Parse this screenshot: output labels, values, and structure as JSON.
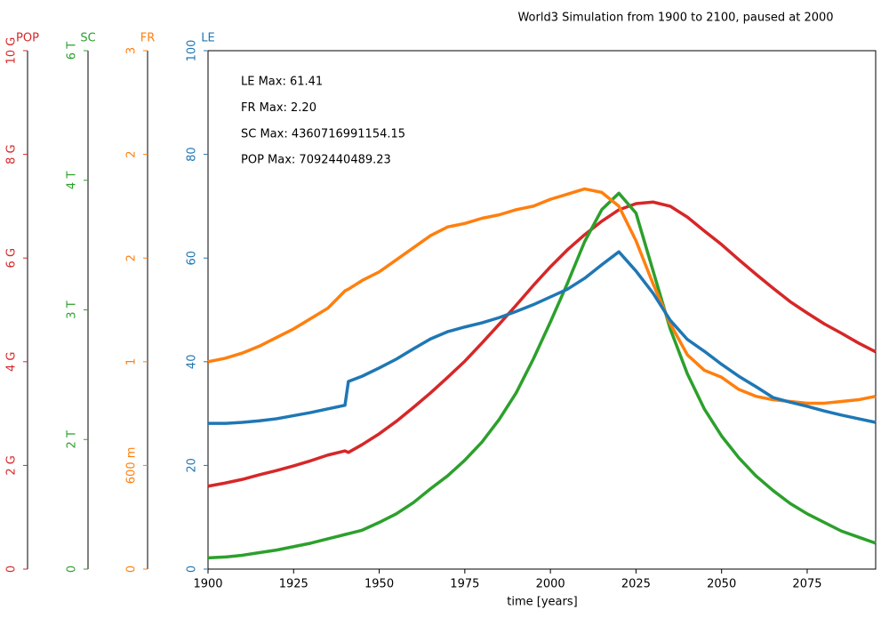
{
  "chart_data": {
    "type": "line",
    "title": "World3 Simulation from 1900 to 2100, paused at 2000",
    "x_label": "time [years]",
    "xlim": [
      1900,
      2095
    ],
    "xticks": [
      1900,
      1925,
      1950,
      1975,
      2000,
      2025,
      2050,
      2075
    ],
    "annotations": [
      "LE Max: 61.41",
      "FR Max: 2.20",
      "SC Max: 4360716991154.15",
      "POP Max: 7092440489.23"
    ],
    "x": [
      1900,
      1905,
      1910,
      1915,
      1920,
      1925,
      1930,
      1935,
      1940,
      1941,
      1945,
      1950,
      1955,
      1960,
      1965,
      1970,
      1975,
      1980,
      1985,
      1990,
      1995,
      2000,
      2005,
      2010,
      2015,
      2020,
      2025,
      2030,
      2035,
      2040,
      2045,
      2050,
      2055,
      2060,
      2065,
      2070,
      2075,
      2080,
      2085,
      2090,
      2095
    ],
    "series": [
      {
        "name": "POP",
        "color": "#d62728",
        "ylim": [
          0,
          10000000000
        ],
        "yticks": [
          0,
          {
            "value": 2000000000,
            "label": "2 G"
          },
          {
            "value": 4000000000,
            "label": "4 G"
          },
          {
            "value": 6000000000,
            "label": "6 G"
          },
          {
            "value": 8000000000,
            "label": "8 G"
          },
          {
            "value": 10000000000,
            "label": "10 G"
          }
        ],
        "values": [
          1600000000,
          1660000000,
          1730000000,
          1820000000,
          1900000000,
          1990000000,
          2090000000,
          2200000000,
          2280000000,
          2250000000,
          2400000000,
          2610000000,
          2850000000,
          3120000000,
          3400000000,
          3700000000,
          4010000000,
          4360000000,
          4720000000,
          5090000000,
          5470000000,
          5830000000,
          6160000000,
          6450000000,
          6710000000,
          6930000000,
          7050000000,
          7080000000,
          7000000000,
          6790000000,
          6520000000,
          6260000000,
          5970000000,
          5690000000,
          5420000000,
          5160000000,
          4940000000,
          4730000000,
          4550000000,
          4360000000,
          4190000000
        ]
      },
      {
        "name": "SC",
        "color": "#2ca02c",
        "ylim": [
          0,
          6000000000000
        ],
        "yticks": [
          0,
          {
            "value": 1500000000000,
            "label": "2 T"
          },
          {
            "value": 3000000000000,
            "label": "3 T"
          },
          {
            "value": 4500000000000,
            "label": "4 T"
          },
          {
            "value": 6000000000000,
            "label": "6 T"
          }
        ],
        "values": [
          130000000000,
          140000000000,
          160000000000,
          190000000000,
          220000000000,
          260000000000,
          300000000000,
          350000000000,
          400000000000,
          410000000000,
          450000000000,
          540000000000,
          640000000000,
          770000000000,
          930000000000,
          1080000000000,
          1260000000000,
          1470000000000,
          1730000000000,
          2040000000000,
          2430000000000,
          2860000000000,
          3310000000000,
          3790000000000,
          4160000000000,
          4350000000000,
          4120000000000,
          3450000000000,
          2780000000000,
          2260000000000,
          1850000000000,
          1540000000000,
          1290000000000,
          1080000000000,
          910000000000,
          760000000000,
          640000000000,
          540000000000,
          440000000000,
          370000000000,
          300000000000
        ]
      },
      {
        "name": "FR",
        "color": "#ff7f0e",
        "ylim": [
          0,
          3
        ],
        "yticks": [
          0,
          {
            "value": 0.6,
            "label": "600 m"
          },
          {
            "value": 1.2,
            "label": "1"
          },
          {
            "value": 1.8,
            "label": "2"
          },
          {
            "value": 2.4,
            "label": "2"
          },
          3
        ],
        "values": [
          1.2,
          1.22,
          1.25,
          1.29,
          1.34,
          1.39,
          1.45,
          1.51,
          1.61,
          1.62,
          1.67,
          1.72,
          1.79,
          1.86,
          1.93,
          1.98,
          2.0,
          2.03,
          2.05,
          2.08,
          2.1,
          2.14,
          2.17,
          2.2,
          2.18,
          2.1,
          1.9,
          1.65,
          1.42,
          1.24,
          1.15,
          1.11,
          1.04,
          1.0,
          0.98,
          0.97,
          0.96,
          0.96,
          0.97,
          0.98,
          1.0
        ]
      },
      {
        "name": "LE",
        "color": "#1f77b4",
        "ylim": [
          0,
          100
        ],
        "yticks": [
          0,
          20,
          40,
          60,
          80,
          100
        ],
        "values": [
          28.1,
          28.1,
          28.3,
          28.6,
          29.0,
          29.6,
          30.2,
          30.9,
          31.6,
          36.2,
          37.2,
          38.8,
          40.5,
          42.5,
          44.4,
          45.8,
          46.7,
          47.5,
          48.5,
          49.7,
          51.0,
          52.5,
          54.0,
          56.1,
          58.7,
          61.2,
          57.5,
          53.2,
          48.0,
          44.3,
          42.0,
          39.5,
          37.2,
          35.2,
          33.1,
          32.2,
          31.4,
          30.5,
          29.7,
          29.0,
          28.3
        ]
      }
    ]
  }
}
